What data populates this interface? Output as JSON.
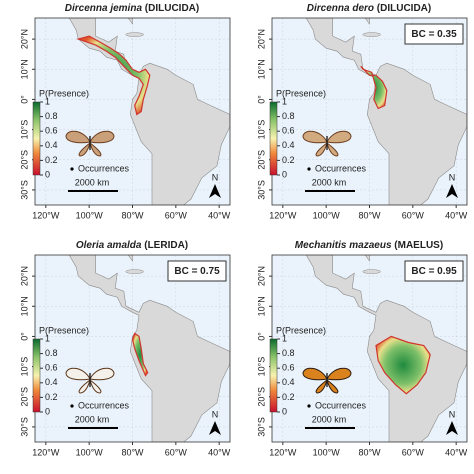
{
  "lat_labels": [
    "20°N",
    "10°N",
    "0°",
    "10°S",
    "20°S",
    "30°S"
  ],
  "lon_labels": [
    "120°W",
    "100°W",
    "80°W",
    "60°W",
    "40°W"
  ],
  "legend": {
    "title": "P(Presence)",
    "ticks": [
      "0",
      "0.2",
      "0.4",
      "0.6",
      "0.8",
      "1"
    ]
  },
  "occurrences": "Occurrences",
  "scale": "2000 km",
  "north": "N",
  "panels": [
    {
      "species": "Dircenna jemina",
      "group": "(DILUCIDA)"
    },
    {
      "species": "Dircenna dero",
      "group": "(DILUCIDA)",
      "bc": "BC = 0.35"
    },
    {
      "species": "Oleria amalda",
      "group": "(LERIDA)",
      "bc": "BC = 0.75"
    },
    {
      "species": "Mechanitis mazaeus",
      "group": "(MAELUS)",
      "bc": "BC = 0.95"
    }
  ]
}
